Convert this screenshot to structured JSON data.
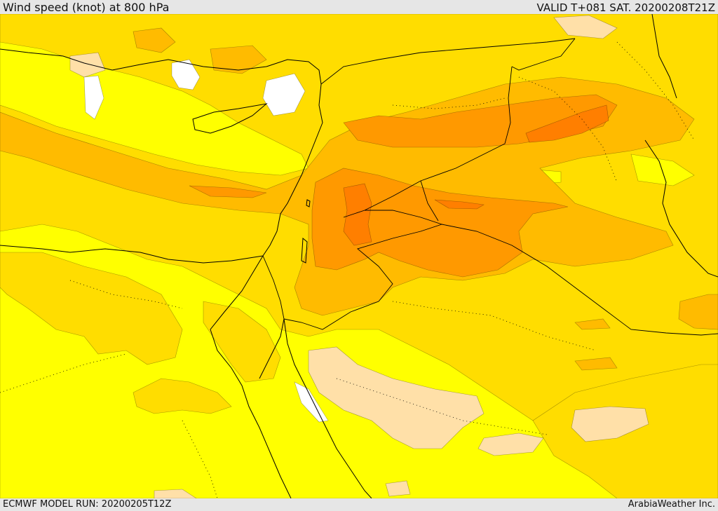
{
  "header": {
    "title": "Wind speed (knot) at 800 hPa",
    "valid": "VALID T+081 SAT. 20200208T21Z"
  },
  "footer": {
    "model_run": "ECMWF MODEL RUN: 20200205T12Z",
    "credit": "ArabiaWeather Inc."
  },
  "map": {
    "fill_colors": {
      "lowest": "#ffffff",
      "very_low": "#ffe0a8",
      "low": "#ffff00",
      "moderate": "#ffdd00",
      "elevated": "#ffbb00",
      "high": "#ff9900",
      "very_high": "#ff7f00"
    },
    "line_color": "#000000"
  }
}
